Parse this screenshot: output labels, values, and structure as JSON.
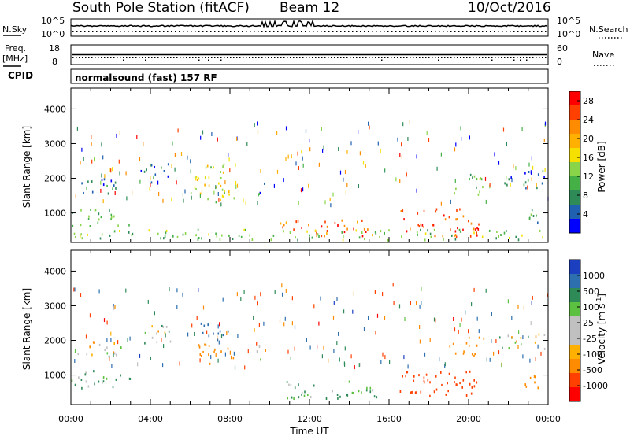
{
  "header": {
    "station": "South Pole Station (fitACF)",
    "beam": "Beam 12",
    "date": "10/Oct/2016"
  },
  "aux_panels": {
    "nsky_label": "N.Sky",
    "nsearch_label": "N.Search",
    "nsky_tick_top": "10^5",
    "nsky_tick_bottom": "10^0",
    "freq_label": "Freq.",
    "freq_unit": "[MHz]",
    "freq_tick_top": "18",
    "freq_tick_bottom": "8",
    "nave_label": "Nave",
    "nave_tick_top": "60",
    "nave_tick_bottom": "0"
  },
  "cpid": {
    "label": "CPID",
    "value": "normalsound (fast) 157 RF"
  },
  "panels": [
    {
      "ylabel": "Slant Range [km]",
      "cbar_label": "Power [dB]",
      "cbar_ticks": [
        "28",
        "24",
        "20",
        "16",
        "12",
        "8",
        "4"
      ],
      "cbar_colors": [
        "#ff0000",
        "#ff4000",
        "#ff8c00",
        "#ffb000",
        "#f5e000",
        "#8ad44a",
        "#45b045",
        "#2e8b57",
        "#2060b0",
        "#0000ff"
      ]
    },
    {
      "ylabel": "Slant Range [km]",
      "cbar_label": "Velocity [m s",
      "cbar_label_exp": "-1",
      "cbar_label_end": "]",
      "cbar_ticks": [
        "1000",
        "500",
        "100",
        "25",
        "-25",
        "-100",
        "-500",
        "-1000"
      ],
      "cbar_colors": [
        "#1c3fbf",
        "#2e6fb0",
        "#2e8b57",
        "#5cc040",
        "#c0c0c0",
        "#c0c0c0",
        "#ffb000",
        "#ff8c00",
        "#ff4000",
        "#ff0000"
      ]
    }
  ],
  "chart_data": [
    {
      "type": "heatmap",
      "name": "power",
      "xlabel": "Time UT",
      "ylabel": "Slant Range [km]",
      "x_ticks": [
        "00:00",
        "04:00",
        "08:00",
        "12:00",
        "16:00",
        "20:00",
        "00:00"
      ],
      "xlim": [
        0,
        24
      ],
      "ylim": [
        150,
        4600
      ],
      "y_ticks": [
        1000,
        2000,
        3000,
        4000
      ],
      "colorbar": {
        "label": "Power [dB]",
        "range": [
          0,
          30
        ],
        "ticks": [
          4,
          8,
          12,
          16,
          20,
          24,
          28
        ]
      },
      "regions": [
        {
          "t": [
            0.0,
            3.0
          ],
          "r": [
            600,
            1100
          ],
          "power": 10
        },
        {
          "t": [
            0.2,
            2.5
          ],
          "r": [
            1500,
            2000
          ],
          "power": 6
        },
        {
          "t": [
            3.5,
            5.0
          ],
          "r": [
            1800,
            2400
          ],
          "power": 5
        },
        {
          "t": [
            6.0,
            8.2
          ],
          "r": [
            1300,
            2500
          ],
          "power": 16
        },
        {
          "t": [
            9.3,
            9.8
          ],
          "r": [
            1400,
            1900
          ],
          "power": 7
        },
        {
          "t": [
            10.5,
            15.5
          ],
          "r": [
            300,
            800
          ],
          "power": 24
        },
        {
          "t": [
            16.5,
            20.5
          ],
          "r": [
            300,
            1100
          ],
          "power": 25
        },
        {
          "t": [
            19.0,
            20.8
          ],
          "r": [
            1500,
            2100
          ],
          "power": 12
        },
        {
          "t": [
            21.5,
            23.8
          ],
          "r": [
            1700,
            2200
          ],
          "power": 6
        },
        {
          "t": [
            22.5,
            23.5
          ],
          "r": [
            600,
            1100
          ],
          "power": 9
        },
        {
          "t": [
            0.0,
            24.0
          ],
          "r": [
            200,
            500
          ],
          "power": 12
        }
      ]
    },
    {
      "type": "heatmap",
      "name": "velocity",
      "xlabel": "Time UT",
      "ylabel": "Slant Range [km]",
      "x_ticks": [
        "00:00",
        "04:00",
        "08:00",
        "12:00",
        "16:00",
        "20:00",
        "00:00"
      ],
      "xlim": [
        0,
        24
      ],
      "ylim": [
        150,
        4600
      ],
      "y_ticks": [
        1000,
        2000,
        3000,
        4000
      ],
      "colorbar": {
        "label": "Velocity [m s-1]",
        "range": [
          -1000,
          1000
        ],
        "ticks": [
          1000,
          500,
          100,
          25,
          -25,
          -100,
          -500,
          -1000
        ]
      },
      "regions": [
        {
          "t": [
            0.0,
            3.0
          ],
          "r": [
            600,
            1100
          ],
          "velocity": 80
        },
        {
          "t": [
            0.2,
            2.5
          ],
          "r": [
            1500,
            2000
          ],
          "velocity": 0
        },
        {
          "t": [
            3.5,
            5.0
          ],
          "r": [
            1800,
            2400
          ],
          "velocity": 0
        },
        {
          "t": [
            6.2,
            8.2
          ],
          "r": [
            1300,
            1900
          ],
          "velocity": -200
        },
        {
          "t": [
            6.5,
            8.0
          ],
          "r": [
            2000,
            2500
          ],
          "velocity": 400
        },
        {
          "t": [
            9.3,
            9.8
          ],
          "r": [
            1400,
            1900
          ],
          "velocity": 0
        },
        {
          "t": [
            10.5,
            15.5
          ],
          "r": [
            300,
            800
          ],
          "velocity": 100
        },
        {
          "t": [
            16.5,
            20.5
          ],
          "r": [
            300,
            1100
          ],
          "velocity": -400
        },
        {
          "t": [
            19.0,
            20.8
          ],
          "r": [
            1500,
            2100
          ],
          "velocity": -150
        },
        {
          "t": [
            21.5,
            23.8
          ],
          "r": [
            1700,
            2200
          ],
          "velocity": 0
        },
        {
          "t": [
            22.5,
            23.5
          ],
          "r": [
            600,
            1100
          ],
          "velocity": -200
        }
      ]
    }
  ]
}
